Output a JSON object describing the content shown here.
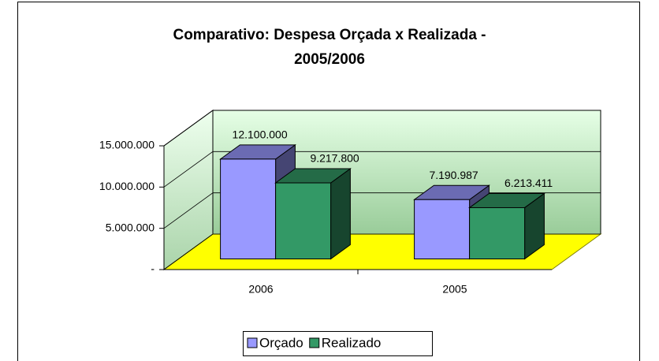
{
  "chart_data": {
    "type": "bar3d",
    "title": [
      "Comparativo: Despesa Orçada x Realizada -",
      "2005/2006"
    ],
    "categories": [
      "2006",
      "2005"
    ],
    "series": [
      {
        "name": "Orçado",
        "color": "#9999ff",
        "values": [
          12100000,
          7190987
        ],
        "value_labels": [
          "12.100.000",
          "7.190.987"
        ]
      },
      {
        "name": "Realizado",
        "color": "#339966",
        "values": [
          9217800,
          6213411
        ],
        "value_labels": [
          "9.217.800",
          "6.213.411"
        ]
      }
    ],
    "ylim": [
      0,
      15000000
    ],
    "yticks": [
      {
        "value": 0,
        "label": "-"
      },
      {
        "value": 5000000,
        "label": "5.000.000"
      },
      {
        "value": 10000000,
        "label": "10.000.000"
      },
      {
        "value": 15000000,
        "label": "15.000.000"
      }
    ],
    "grid": true,
    "legend": "bottom"
  }
}
